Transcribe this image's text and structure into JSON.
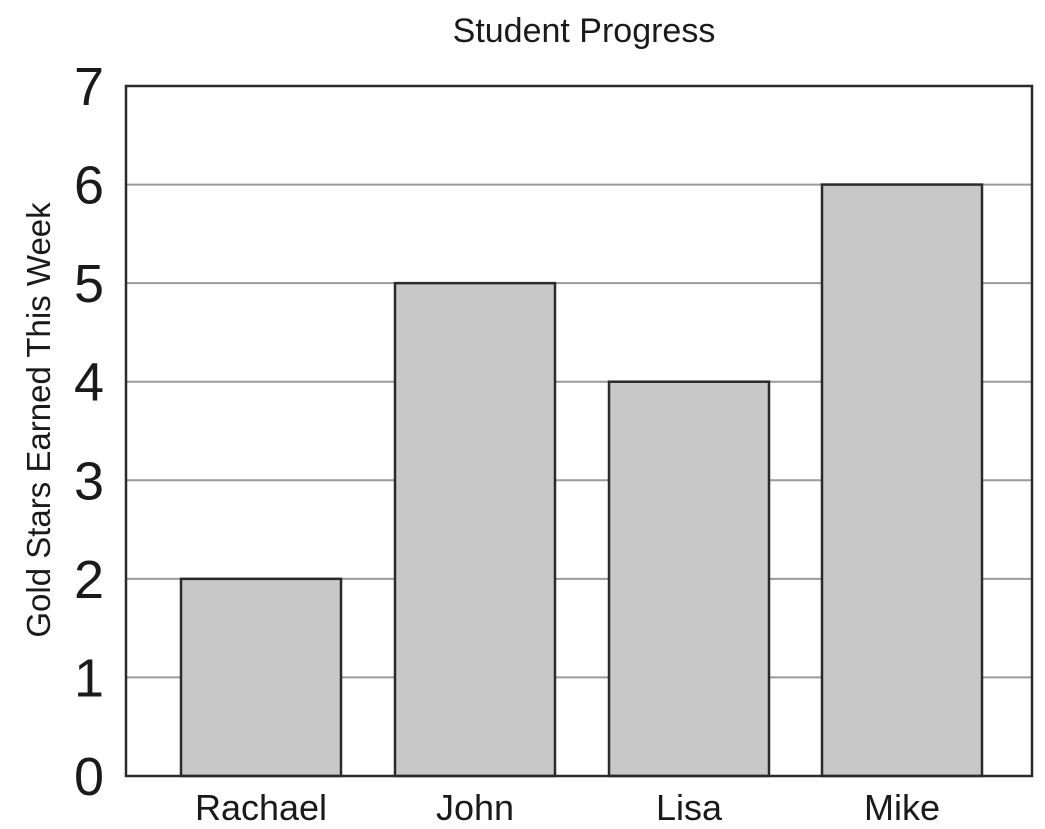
{
  "chart_data": {
    "type": "bar",
    "title": "Student Progress",
    "xlabel": "",
    "ylabel": "Gold Stars Earned This Week",
    "categories": [
      "Rachael",
      "John",
      "Lisa",
      "Mike"
    ],
    "values": [
      2,
      5,
      4,
      6
    ],
    "yticks": [
      "0",
      "1",
      "2",
      "3",
      "4",
      "5",
      "6",
      "7"
    ],
    "ylim": [
      0,
      7
    ],
    "grid": true,
    "legend": "none",
    "colors": {
      "bar_fill": "#c8c8c8",
      "bar_stroke": "#2a2a2a",
      "grid": "#9a9a9a",
      "frame": "#2a2a2a"
    }
  }
}
